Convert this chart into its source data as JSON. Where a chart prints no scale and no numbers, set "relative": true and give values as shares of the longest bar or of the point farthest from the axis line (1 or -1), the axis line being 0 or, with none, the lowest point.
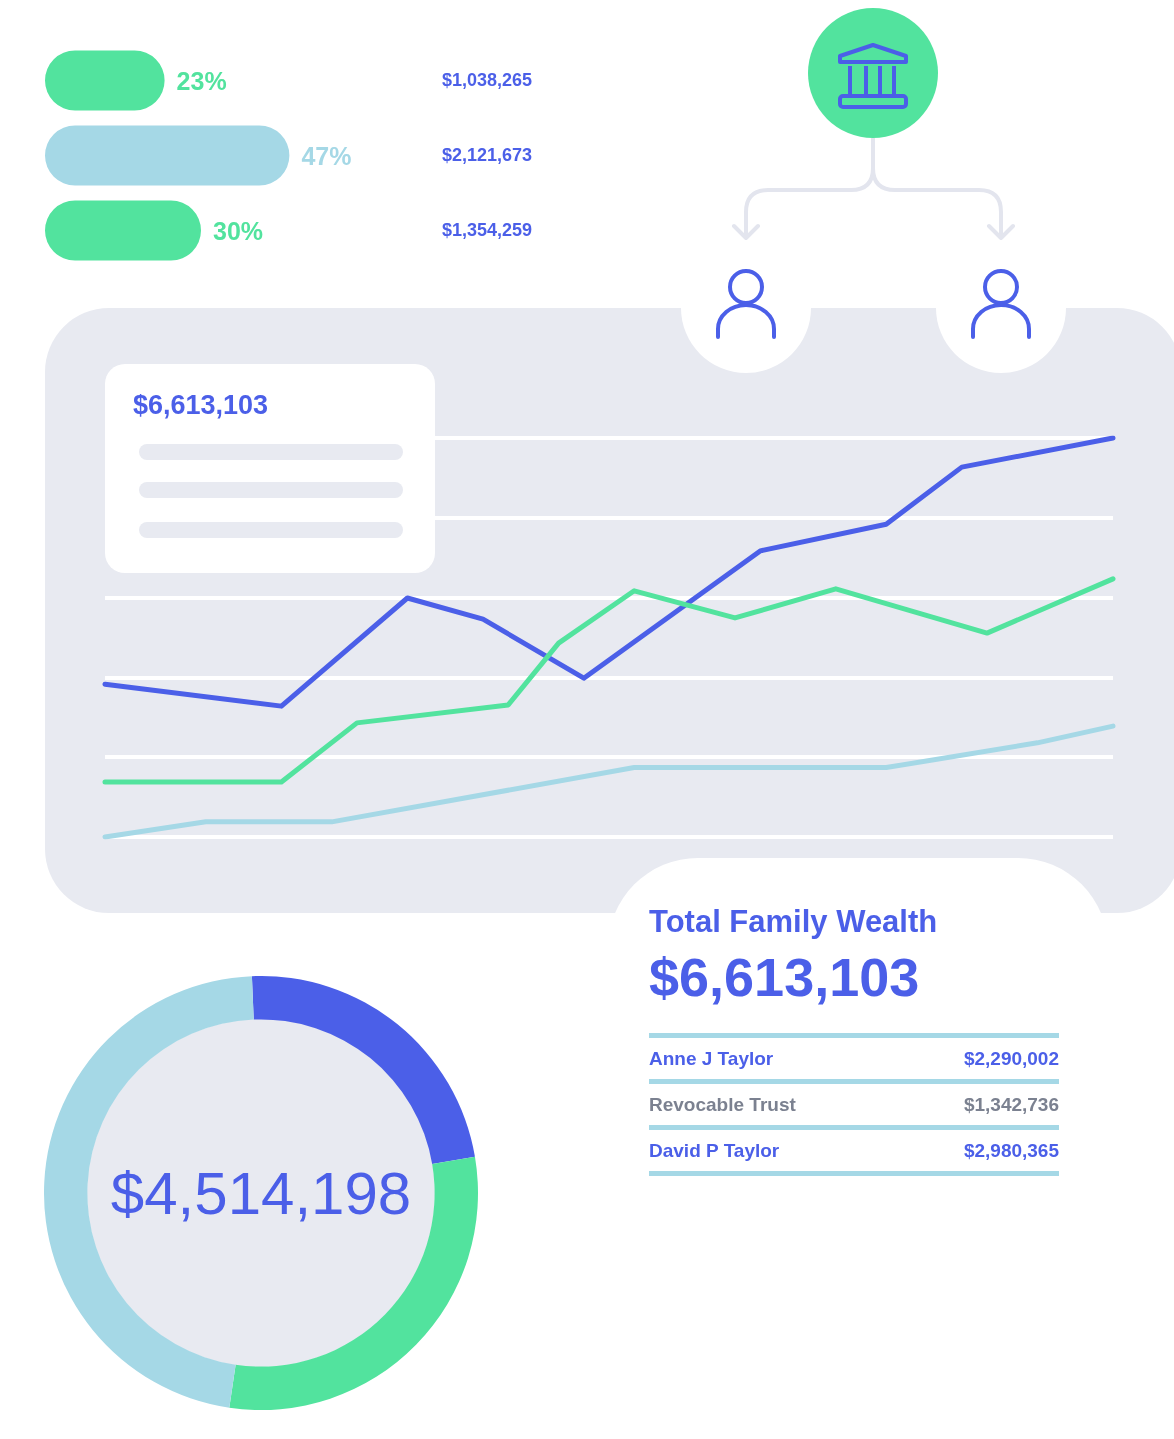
{
  "chart_data": [
    {
      "type": "bar",
      "orientation": "horizontal",
      "categories": [
        null,
        null,
        null
      ],
      "values": [
        23,
        47,
        30
      ],
      "colors": [
        "#52e39e",
        "#a5d8e6",
        "#52e39e"
      ],
      "value_labels": [
        "23%",
        "47%",
        "30%"
      ],
      "annotations": [
        "$1,038,265",
        "$2,121,673",
        "$1,354,259"
      ],
      "tick_labels": false
    },
    {
      "type": "line",
      "relative": true,
      "grid": "y",
      "annotations": [
        "$6,613,103"
      ],
      "categories": [
        null,
        null,
        null,
        null,
        null,
        null,
        null,
        null,
        null,
        null,
        null,
        null,
        null,
        null,
        null,
        null,
        null,
        null,
        null,
        null,
        null,
        null,
        null,
        null,
        null,
        null,
        null,
        null,
        null,
        null,
        null,
        null,
        null,
        null,
        null,
        null,
        null,
        null,
        null,
        null,
        null
      ],
      "series": [
        {
          "color": "#4b5fe8",
          "values": [
            0.383,
            null,
            null,
            null,
            null,
            null,
            null,
            0.328,
            null,
            null,
            null,
            null,
            0.599,
            null,
            null,
            0.546,
            null,
            null,
            null,
            0.398,
            null,
            null,
            null,
            null,
            null,
            null,
            0.717,
            null,
            null,
            null,
            null,
            0.784,
            null,
            null,
            0.927,
            null,
            null,
            null,
            null,
            null,
            1
          ]
        },
        {
          "color": "#52e39e",
          "values": [
            0.138,
            null,
            null,
            null,
            null,
            null,
            null,
            0.138,
            null,
            null,
            0.286,
            null,
            null,
            null,
            null,
            null,
            0.331,
            null,
            0.486,
            null,
            null,
            0.617,
            null,
            null,
            null,
            0.549,
            null,
            null,
            null,
            0.622,
            null,
            null,
            null,
            null,
            null,
            0.511,
            null,
            null,
            null,
            null,
            0.647
          ]
        },
        {
          "color": "#a5d8e6",
          "values": [
            0,
            null,
            null,
            null,
            0.038,
            null,
            null,
            null,
            null,
            0.038,
            null,
            null,
            null,
            null,
            null,
            null,
            null,
            null,
            null,
            null,
            null,
            0.174,
            null,
            null,
            null,
            null,
            null,
            null,
            null,
            null,
            null,
            0.174,
            null,
            null,
            null,
            null,
            null,
            0.236,
            null,
            null,
            0.278
          ]
        }
      ]
    },
    {
      "type": "donut",
      "title": "$4,514,198",
      "categories": [
        null,
        null,
        null
      ],
      "values": [
        23,
        30,
        47
      ],
      "colors": [
        "#4b5fe8",
        "#52e39e",
        "#a5d8e6"
      ]
    },
    {
      "type": "other",
      "title": "Total Family Wealth",
      "subtitle": "$6,613,103",
      "annotations": [
        "Anne J Taylor",
        "$2,290,002",
        "Revocable Trust",
        "$1,342,736",
        "David P Taylor",
        "$2,980,365"
      ]
    }
  ]
}
